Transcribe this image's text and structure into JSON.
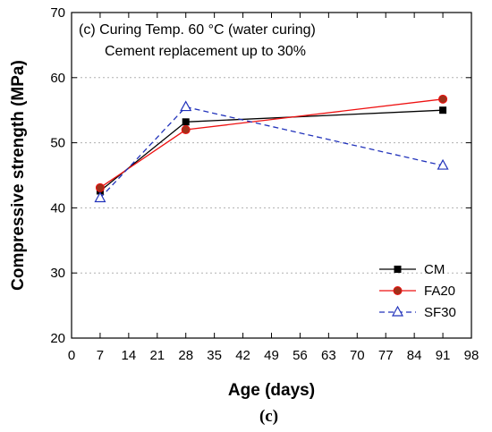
{
  "chart_data": {
    "type": "line",
    "annotation_line1": "(c) Curing Temp. 60 °C (water curing)",
    "annotation_line2": "Cement replacement up to 30%",
    "xlabel": "Age (days)",
    "ylabel": "Compressive strength (MPa)",
    "xlim": [
      0,
      98
    ],
    "ylim": [
      20,
      70
    ],
    "xticks": [
      0,
      7,
      14,
      21,
      28,
      35,
      42,
      49,
      56,
      63,
      70,
      77,
      84,
      91,
      98
    ],
    "yticks": [
      20,
      30,
      40,
      50,
      60,
      70
    ],
    "grid": "horizontal dotted",
    "legend_position": "bottom-right",
    "series": [
      {
        "name": "CM",
        "x": [
          7,
          28,
          91
        ],
        "y": [
          42.6,
          53.2,
          55.0
        ],
        "color": "#000000",
        "marker": "filled-square",
        "line": "solid"
      },
      {
        "name": "FA20",
        "x": [
          7,
          28,
          91
        ],
        "y": [
          43.1,
          52.0,
          56.7
        ],
        "color": "#ee1111",
        "marker": "filled-circle",
        "marker_fill": "#a0301a",
        "line": "solid"
      },
      {
        "name": "SF30",
        "x": [
          7,
          28,
          91
        ],
        "y": [
          41.5,
          55.5,
          46.5
        ],
        "color": "#2233bb",
        "marker": "open-triangle",
        "line": "dashed"
      }
    ]
  },
  "caption": "(c)"
}
